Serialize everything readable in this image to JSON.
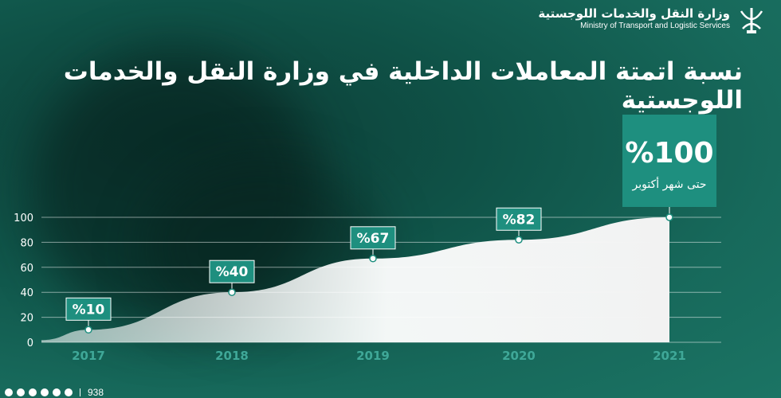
{
  "header": {
    "ministry_ar": "وزارة النقل والخدمات اللوجستية",
    "ministry_en": "Ministry of Transport and Logistic Services"
  },
  "title": "نسبة اتمتة المعاملات الداخلية في وزارة النقل والخدمات اللوجستية",
  "highlight": {
    "value_label": "%100",
    "note": "حتى شهر أكتوبر"
  },
  "footer": {
    "icons": [
      "snapchat-icon",
      "facebook-icon",
      "instagram-icon",
      "twitter-icon",
      "youtube-icon",
      "linkedin-icon"
    ],
    "hotline": "938"
  },
  "colors": {
    "background": "#15604f",
    "label_box": "#1e8f7f",
    "area_fill": "#f5f5f5",
    "year_label": "#3fa898",
    "grid": "#ffffff"
  },
  "chart_data": {
    "type": "area",
    "x": [
      "2017",
      "2018",
      "2019",
      "2020",
      "2021"
    ],
    "values": [
      10,
      40,
      67,
      82,
      100
    ],
    "point_labels": [
      "%10",
      "%40",
      "%67",
      "%82",
      "%100"
    ],
    "y_ticks": [
      "0",
      "20",
      "40",
      "60",
      "80",
      "100"
    ],
    "ylim": [
      0,
      100
    ],
    "grid": true
  }
}
